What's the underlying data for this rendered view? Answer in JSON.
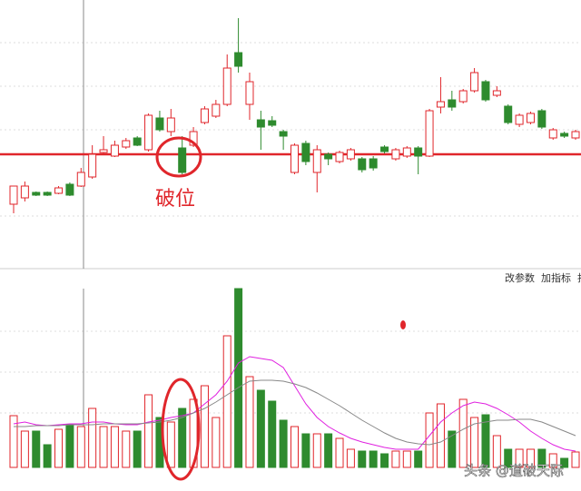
{
  "chart_data": [
    {
      "type": "candlestick",
      "categories": [
        null,
        null,
        null,
        null,
        null,
        null,
        null,
        null,
        null,
        null,
        null,
        null,
        null,
        null,
        null,
        null,
        null,
        null,
        null,
        null,
        null,
        null,
        null,
        null,
        null,
        null,
        null,
        null,
        null,
        null,
        null,
        null,
        null,
        null,
        null,
        null,
        null,
        null,
        null,
        null,
        null,
        null,
        null,
        null,
        null,
        null,
        null,
        null,
        null,
        null,
        null
      ],
      "open": [
        75,
        82,
        88,
        88,
        87,
        97,
        95,
        105,
        132,
        128,
        138,
        148,
        135,
        170,
        155,
        137,
        140,
        165,
        172,
        185,
        242,
        185,
        168,
        167,
        155,
        110,
        142,
        110,
        130,
        122,
        125,
        125,
        125,
        138,
        125,
        128,
        137,
        128,
        182,
        190,
        188,
        200,
        210,
        195,
        183,
        163,
        165,
        178,
        148,
        153,
        148
      ],
      "close": [
        95,
        95,
        85,
        85,
        93,
        85,
        110,
        130,
        135,
        140,
        145,
        140,
        173,
        157,
        170,
        110,
        155,
        180,
        185,
        225,
        227,
        210,
        160,
        162,
        150,
        140,
        122,
        135,
        125,
        132,
        135,
        113,
        115,
        133,
        135,
        137,
        128,
        178,
        188,
        182,
        200,
        220,
        190,
        200,
        165,
        173,
        175,
        160,
        157,
        150,
        155
      ],
      "high": [
        95,
        100,
        89,
        89,
        95,
        99,
        115,
        140,
        150,
        145,
        148,
        150,
        175,
        178,
        180,
        150,
        160,
        183,
        190,
        240,
        280,
        220,
        178,
        172,
        157,
        142,
        145,
        140,
        132,
        134,
        137,
        127,
        128,
        140,
        137,
        139,
        139,
        180,
        215,
        200,
        202,
        225,
        212,
        205,
        185,
        175,
        177,
        180,
        159,
        155,
        157
      ],
      "low": [
        65,
        78,
        84,
        84,
        86,
        84,
        94,
        103,
        130,
        127,
        136,
        139,
        133,
        155,
        150,
        108,
        138,
        163,
        170,
        183,
        220,
        168,
        135,
        160,
        135,
        108,
        118,
        88,
        118,
        120,
        123,
        110,
        112,
        131,
        123,
        126,
        108,
        127,
        175,
        178,
        186,
        198,
        188,
        193,
        163,
        160,
        163,
        158,
        146,
        148,
        146
      ],
      "ylim": [
        0,
        300
      ],
      "up_color": "#e0262b",
      "down_color": "#2e8b2e",
      "reference_line": 130,
      "annotation": "破位"
    },
    {
      "type": "bar",
      "values": [
        57,
        40,
        40,
        25,
        42,
        47,
        45,
        65,
        45,
        45,
        40,
        40,
        80,
        55,
        50,
        65,
        75,
        90,
        55,
        145,
        197,
        100,
        85,
        73,
        52,
        45,
        37,
        37,
        37,
        32,
        20,
        18,
        18,
        15,
        18,
        18,
        18,
        60,
        70,
        40,
        75,
        55,
        58,
        35,
        20,
        20,
        20,
        20,
        15,
        10,
        17
      ],
      "ylim": [
        0,
        200
      ],
      "series": [
        {
          "color": "#e020e0",
          "values": [
            48,
            50,
            47,
            46,
            47,
            48,
            48,
            50,
            50,
            48,
            47,
            47,
            50,
            52,
            55,
            57,
            60,
            70,
            80,
            95,
            115,
            122,
            120,
            118,
            110,
            90,
            70,
            55,
            45,
            38,
            32,
            28,
            25,
            22,
            20,
            20,
            20,
            35,
            50,
            60,
            68,
            72,
            70,
            65,
            58,
            50,
            40,
            32,
            25,
            20,
            18
          ]
        },
        {
          "color": "#888888",
          "values": [
            45,
            45,
            46,
            46,
            46,
            47,
            47,
            47,
            48,
            48,
            48,
            48,
            49,
            50,
            52,
            55,
            60,
            65,
            72,
            80,
            88,
            95,
            96,
            96,
            95,
            92,
            88,
            82,
            75,
            68,
            60,
            52,
            45,
            38,
            32,
            28,
            26,
            25,
            28,
            35,
            42,
            48,
            50,
            52,
            52,
            53,
            53,
            50,
            45,
            40,
            35
          ]
        }
      ]
    }
  ],
  "toolbar": [
    "改参数",
    "加指标",
    "指"
  ],
  "watermark": "头条 @道破天际"
}
